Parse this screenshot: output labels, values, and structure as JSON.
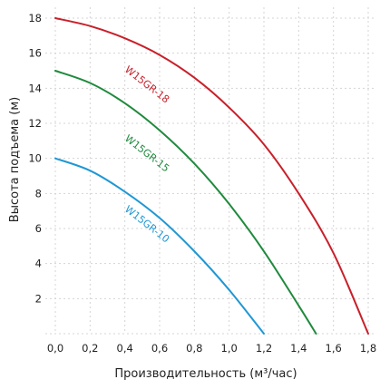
{
  "chart_data": {
    "type": "line",
    "title": "",
    "xlabel": "Производительность (м³/час)",
    "ylabel": "Высота подъема (м)",
    "xlim": [
      0,
      1.8
    ],
    "ylim": [
      0,
      19
    ],
    "x_ticks": [
      0.0,
      0.2,
      0.4,
      0.6,
      0.8,
      1.0,
      1.2,
      1.4,
      1.6,
      1.8
    ],
    "x_tick_labels": [
      "0,0",
      "0,2",
      "0,4",
      "0,6",
      "0,8",
      "1,0",
      "1,2",
      "1,4",
      "1,6",
      "1,8"
    ],
    "y_ticks": [
      2,
      4,
      6,
      8,
      10,
      12,
      14,
      16,
      18
    ],
    "y_tick_labels": [
      "2",
      "4",
      "6",
      "8",
      "10",
      "12",
      "14",
      "16",
      "18"
    ],
    "grid": true,
    "series": [
      {
        "name": "W15GR-18",
        "color": "#c8202a",
        "x": [
          0.0,
          0.2,
          0.4,
          0.6,
          0.8,
          1.0,
          1.2,
          1.4,
          1.6,
          1.8
        ],
        "y": [
          18.0,
          17.55,
          16.85,
          15.9,
          14.6,
          12.9,
          10.8,
          8.0,
          4.6,
          0.0
        ]
      },
      {
        "name": "W15GR-15",
        "color": "#1f8a3c",
        "x": [
          0.0,
          0.2,
          0.4,
          0.6,
          0.8,
          1.0,
          1.2,
          1.4,
          1.5
        ],
        "y": [
          15.0,
          14.3,
          13.15,
          11.6,
          9.7,
          7.4,
          4.7,
          1.6,
          0.0
        ]
      },
      {
        "name": "W15GR-10",
        "color": "#1f97d4",
        "x": [
          0.0,
          0.2,
          0.4,
          0.6,
          0.8,
          1.0,
          1.2
        ],
        "y": [
          10.0,
          9.3,
          8.1,
          6.6,
          4.7,
          2.5,
          0.0
        ]
      }
    ]
  }
}
